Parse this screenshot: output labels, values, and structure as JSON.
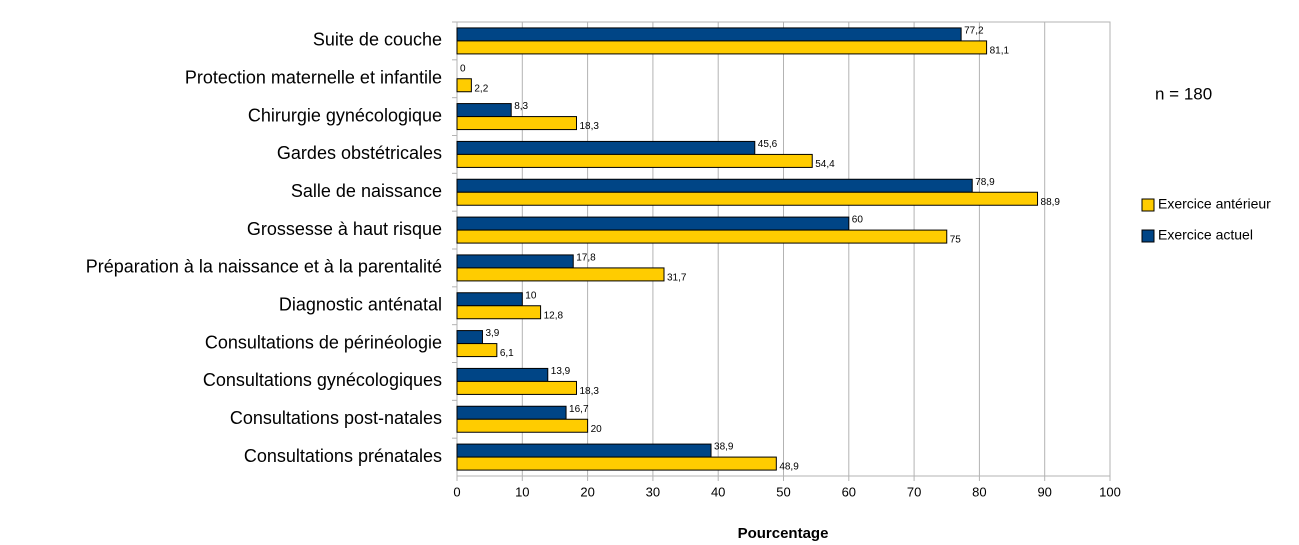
{
  "chart_data": {
    "type": "hbar",
    "categories": [
      "Suite de couche",
      "Protection maternelle et infantile",
      "Chirurgie gynécologique",
      "Gardes obstétricales",
      "Salle de naissance",
      "Grossesse à haut risque",
      "Préparation à la naissance et à la parentalité",
      "Diagnostic anténatal",
      "Consultations de périnéologie",
      "Consultations gynécologiques",
      "Consultations post-natales",
      "Consultations prénatales"
    ],
    "series": [
      {
        "name": "Exercice antérieur",
        "color": "#ffcc00",
        "values": [
          81.1,
          2.2,
          18.3,
          54.4,
          88.9,
          75,
          31.7,
          12.8,
          6.1,
          18.3,
          20,
          48.9
        ],
        "value_labels": [
          "81,1",
          "2,2",
          "18,3",
          "54,4",
          "88,9",
          "75",
          "31,7",
          "12,8",
          "6,1",
          "18,3",
          "20",
          "48,9"
        ]
      },
      {
        "name": "Exercice actuel",
        "color": "#004586",
        "values": [
          77.2,
          0,
          8.3,
          45.6,
          78.9,
          60,
          17.8,
          10,
          3.9,
          13.9,
          16.7,
          38.9
        ],
        "value_labels": [
          "77,2",
          "0",
          "8,3",
          "45,6",
          "78,9",
          "60",
          "17,8",
          "10",
          "3,9",
          "13,9",
          "16,7",
          "38,9"
        ]
      }
    ],
    "xlabel": "Pourcentage",
    "annotation": "n = 180",
    "xlim": [
      0,
      100
    ],
    "xticks": [
      0,
      10,
      20,
      30,
      40,
      50,
      60,
      70,
      80,
      90,
      100
    ],
    "grid": true,
    "legend": "right"
  }
}
